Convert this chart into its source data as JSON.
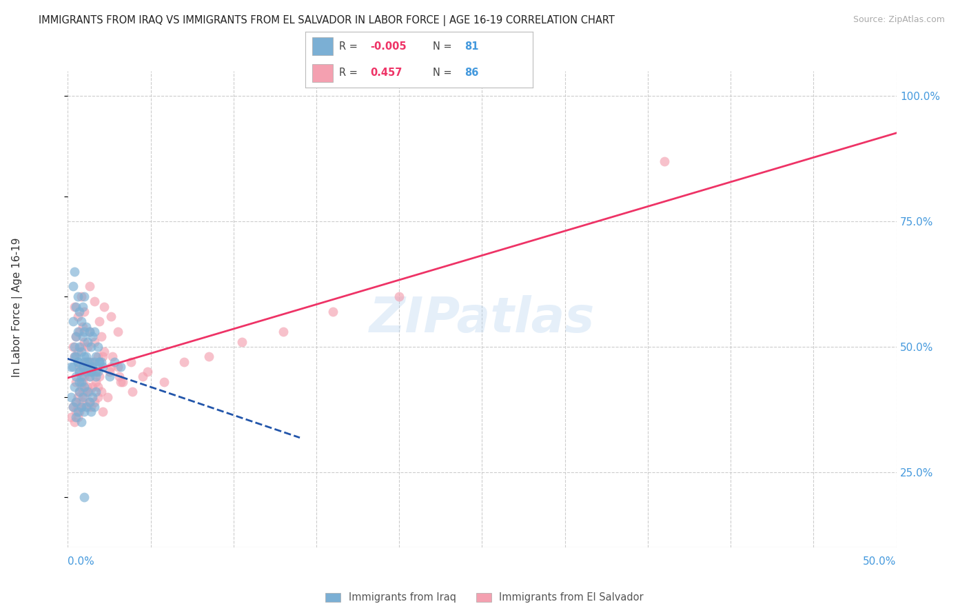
{
  "title": "IMMIGRANTS FROM IRAQ VS IMMIGRANTS FROM EL SALVADOR IN LABOR FORCE | AGE 16-19 CORRELATION CHART",
  "source": "Source: ZipAtlas.com",
  "ylabel": "In Labor Force | Age 16-19",
  "legend_label_iraq": "Immigrants from Iraq",
  "legend_label_salvador": "Immigrants from El Salvador",
  "color_iraq": "#7BAFD4",
  "color_salvador": "#F4A0B0",
  "color_iraq_line": "#2255AA",
  "color_salvador_line": "#EE3366",
  "color_right_axis": "#4499DD",
  "xlim": [
    0.0,
    0.5
  ],
  "ylim": [
    0.1,
    1.05
  ],
  "yticks_right": [
    0.25,
    0.5,
    0.75,
    1.0
  ],
  "ytick_labels_right": [
    "25.0%",
    "50.0%",
    "75.0%",
    "100.0%"
  ],
  "iraq_R": -0.005,
  "iraq_N": 81,
  "salvador_R": 0.457,
  "salvador_N": 86,
  "iraq_x": [
    0.002,
    0.003,
    0.003,
    0.004,
    0.004,
    0.005,
    0.005,
    0.005,
    0.006,
    0.006,
    0.006,
    0.007,
    0.007,
    0.007,
    0.008,
    0.008,
    0.008,
    0.009,
    0.009,
    0.009,
    0.01,
    0.01,
    0.01,
    0.011,
    0.011,
    0.012,
    0.012,
    0.013,
    0.013,
    0.014,
    0.014,
    0.015,
    0.015,
    0.016,
    0.016,
    0.017,
    0.017,
    0.018,
    0.018,
    0.019,
    0.002,
    0.003,
    0.004,
    0.005,
    0.005,
    0.006,
    0.007,
    0.007,
    0.008,
    0.008,
    0.009,
    0.01,
    0.01,
    0.011,
    0.012,
    0.013,
    0.014,
    0.015,
    0.016,
    0.017,
    0.003,
    0.004,
    0.005,
    0.006,
    0.007,
    0.008,
    0.009,
    0.01,
    0.011,
    0.012,
    0.013,
    0.015,
    0.017,
    0.019,
    0.021,
    0.025,
    0.028,
    0.032,
    0.02,
    0.014,
    0.01
  ],
  "iraq_y": [
    0.46,
    0.55,
    0.62,
    0.5,
    0.65,
    0.48,
    0.52,
    0.58,
    0.47,
    0.53,
    0.6,
    0.45,
    0.5,
    0.57,
    0.44,
    0.49,
    0.55,
    0.46,
    0.52,
    0.58,
    0.47,
    0.53,
    0.6,
    0.48,
    0.54,
    0.46,
    0.51,
    0.47,
    0.53,
    0.45,
    0.5,
    0.46,
    0.52,
    0.47,
    0.53,
    0.44,
    0.48,
    0.45,
    0.5,
    0.47,
    0.4,
    0.38,
    0.42,
    0.36,
    0.39,
    0.37,
    0.41,
    0.43,
    0.38,
    0.35,
    0.4,
    0.37,
    0.42,
    0.38,
    0.41,
    0.39,
    0.37,
    0.4,
    0.38,
    0.41,
    0.46,
    0.48,
    0.44,
    0.47,
    0.45,
    0.43,
    0.46,
    0.48,
    0.45,
    0.47,
    0.44,
    0.46,
    0.45,
    0.47,
    0.46,
    0.44,
    0.47,
    0.46,
    0.47,
    0.45,
    0.2
  ],
  "salvador_x": [
    0.002,
    0.003,
    0.004,
    0.005,
    0.005,
    0.006,
    0.006,
    0.007,
    0.007,
    0.008,
    0.008,
    0.009,
    0.009,
    0.01,
    0.01,
    0.011,
    0.011,
    0.012,
    0.012,
    0.013,
    0.013,
    0.014,
    0.015,
    0.015,
    0.016,
    0.017,
    0.018,
    0.019,
    0.02,
    0.021,
    0.003,
    0.004,
    0.005,
    0.006,
    0.007,
    0.008,
    0.009,
    0.01,
    0.011,
    0.012,
    0.013,
    0.015,
    0.016,
    0.018,
    0.02,
    0.022,
    0.025,
    0.027,
    0.03,
    0.033,
    0.004,
    0.006,
    0.008,
    0.01,
    0.013,
    0.016,
    0.019,
    0.022,
    0.026,
    0.03,
    0.005,
    0.007,
    0.01,
    0.013,
    0.017,
    0.021,
    0.026,
    0.032,
    0.038,
    0.045,
    0.006,
    0.009,
    0.013,
    0.018,
    0.024,
    0.031,
    0.039,
    0.048,
    0.058,
    0.07,
    0.085,
    0.105,
    0.13,
    0.16,
    0.2,
    0.36
  ],
  "salvador_y": [
    0.36,
    0.38,
    0.35,
    0.37,
    0.39,
    0.36,
    0.4,
    0.37,
    0.41,
    0.38,
    0.42,
    0.39,
    0.43,
    0.4,
    0.44,
    0.41,
    0.45,
    0.42,
    0.38,
    0.41,
    0.44,
    0.38,
    0.42,
    0.45,
    0.39,
    0.43,
    0.4,
    0.44,
    0.41,
    0.37,
    0.5,
    0.48,
    0.52,
    0.49,
    0.53,
    0.5,
    0.54,
    0.51,
    0.47,
    0.5,
    0.53,
    0.47,
    0.51,
    0.48,
    0.52,
    0.49,
    0.45,
    0.48,
    0.46,
    0.43,
    0.58,
    0.56,
    0.6,
    0.57,
    0.62,
    0.59,
    0.55,
    0.58,
    0.56,
    0.53,
    0.43,
    0.46,
    0.44,
    0.47,
    0.45,
    0.48,
    0.46,
    0.43,
    0.47,
    0.44,
    0.38,
    0.41,
    0.39,
    0.42,
    0.4,
    0.44,
    0.41,
    0.45,
    0.43,
    0.47,
    0.48,
    0.51,
    0.53,
    0.57,
    0.6,
    0.87
  ],
  "watermark": "ZIPatlas",
  "background_color": "#FFFFFF",
  "grid_color": "#CCCCCC"
}
